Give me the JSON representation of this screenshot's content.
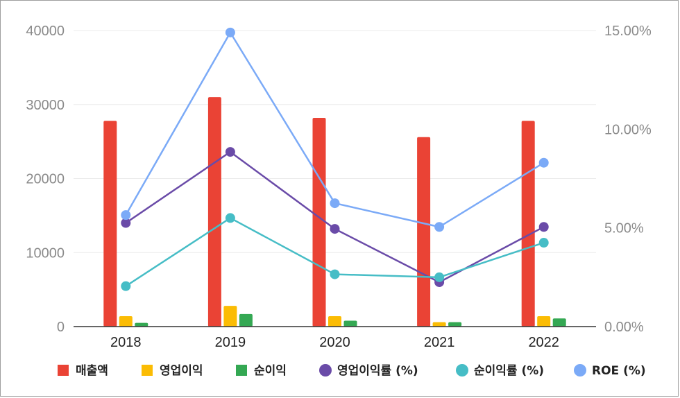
{
  "chart_data": {
    "type": "bar",
    "categories": [
      "2018",
      "2019",
      "2020",
      "2021",
      "2022"
    ],
    "series": [
      {
        "name": "매출액",
        "type": "bar",
        "axis": "left",
        "color": "#ea4335",
        "values": [
          27800,
          31000,
          28200,
          25600,
          27800
        ]
      },
      {
        "name": "영업이익",
        "type": "bar",
        "axis": "left",
        "color": "#fbbc04",
        "values": [
          1400,
          2800,
          1400,
          600,
          1400
        ]
      },
      {
        "name": "순이익",
        "type": "bar",
        "axis": "left",
        "color": "#34a853",
        "values": [
          500,
          1700,
          800,
          600,
          1100
        ]
      },
      {
        "name": "영업이익률 (%)",
        "type": "line",
        "axis": "right",
        "color": "#6a4ba8",
        "values": [
          5.25,
          8.85,
          4.95,
          2.25,
          5.05
        ]
      },
      {
        "name": "순이익률 (%)",
        "type": "line",
        "axis": "right",
        "color": "#46bdc6",
        "values": [
          2.05,
          5.5,
          2.65,
          2.5,
          4.25
        ]
      },
      {
        "name": "ROE (%)",
        "type": "line",
        "axis": "right",
        "color": "#7baaf7",
        "values": [
          5.65,
          14.9,
          6.25,
          5.05,
          8.3
        ]
      }
    ],
    "y_left": {
      "range": [
        0,
        40000
      ],
      "ticks": [
        "0",
        "10000",
        "20000",
        "30000",
        "40000"
      ],
      "tick_values": [
        0,
        10000,
        20000,
        30000,
        40000
      ]
    },
    "y_right": {
      "range": [
        0,
        15
      ],
      "ticks": [
        "0.00%",
        "5.00%",
        "10.00%",
        "15.00%"
      ],
      "tick_values": [
        0,
        5,
        10,
        15
      ]
    },
    "grid": true,
    "legend_position": "bottom"
  }
}
